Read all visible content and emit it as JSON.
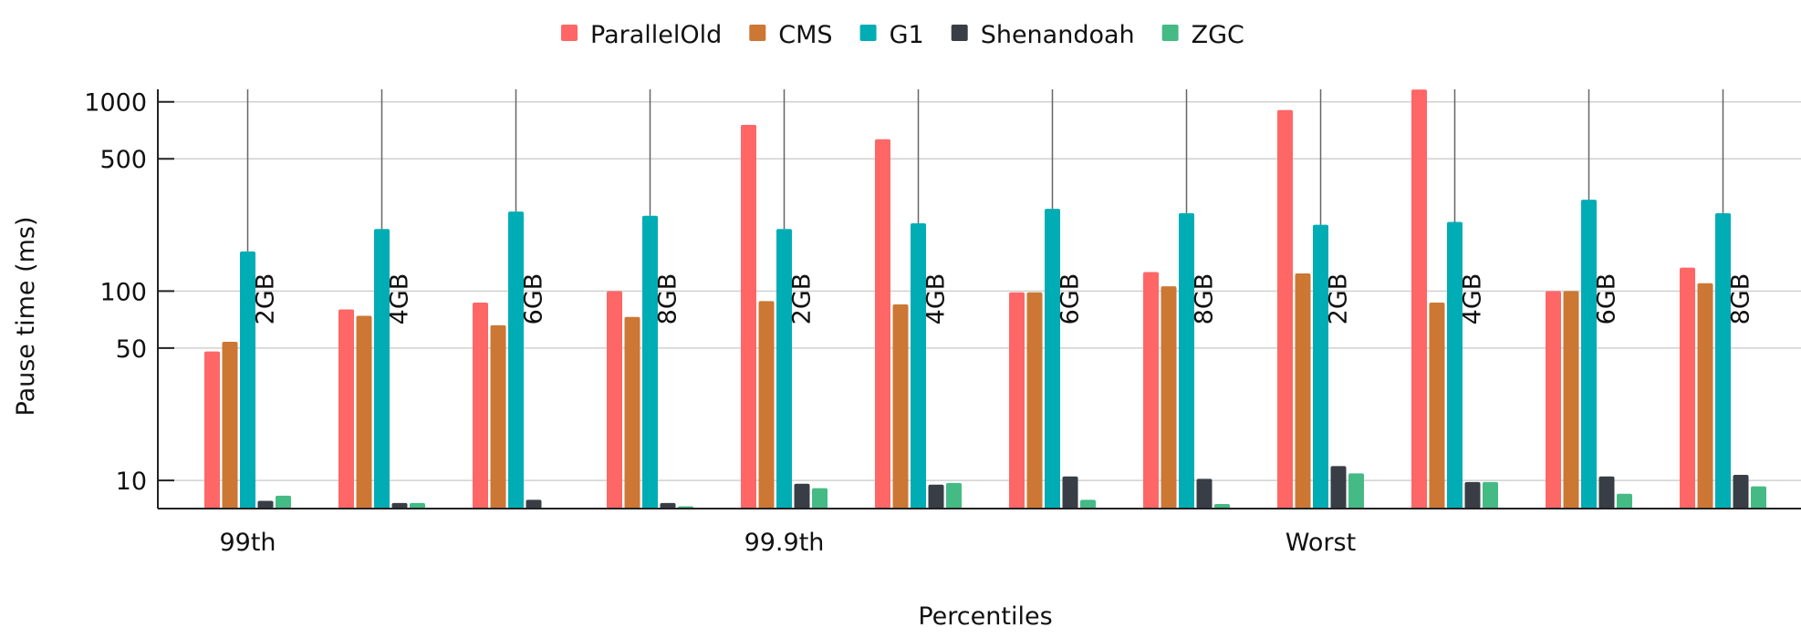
{
  "chart_data": {
    "type": "bar",
    "title": "",
    "xlabel": "Percentiles",
    "ylabel": "Pause time (ms)",
    "yscale": "log",
    "ylim": [
      7.28,
      1175
    ],
    "yticks": [
      10,
      50,
      100,
      500,
      1000
    ],
    "ytick_labels": [
      "10",
      "50",
      "100",
      "500",
      "1000"
    ],
    "grid": "horizontal",
    "legend_position": "top-center",
    "percentile_groups": [
      {
        "label": "99th",
        "group_index": 0
      },
      {
        "label": "99.9th",
        "group_index": 4
      },
      {
        "label": "Worst",
        "group_index": 8
      }
    ],
    "categories": [
      "99th 2GB",
      "99th 4GB",
      "99th 6GB",
      "99th 8GB",
      "99.9th 2GB",
      "99.9th 4GB",
      "99.9th 6GB",
      "99.9th 8GB",
      "Worst 2GB",
      "Worst 4GB",
      "Worst 6GB",
      "Worst 8GB"
    ],
    "bar_labels": [
      "2GB",
      "4GB",
      "6GB",
      "8GB",
      "2GB",
      "4GB",
      "6GB",
      "8GB",
      "2GB",
      "4GB",
      "6GB",
      "8GB"
    ],
    "series": [
      {
        "name": "ParallelOld",
        "color": "#ff6666",
        "values": [
          48,
          80,
          87,
          100,
          755,
          634,
          98.5,
          126,
          904,
          1160,
          100,
          133
        ]
      },
      {
        "name": "CMS",
        "color": "#cc7733",
        "values": [
          54,
          74,
          66,
          73,
          88.5,
          85,
          98.5,
          106,
          124,
          87,
          100,
          110
        ]
      },
      {
        "name": "G1",
        "color": "#00adb5",
        "values": [
          162,
          213,
          263,
          250,
          213,
          228,
          272,
          258,
          224,
          232,
          304,
          258
        ]
      },
      {
        "name": "Shenandoah",
        "color": "#393e46",
        "values": [
          7.8,
          7.6,
          7.9,
          7.6,
          9.6,
          9.5,
          10.5,
          10.2,
          11.9,
          9.8,
          10.5,
          10.7
        ]
      },
      {
        "name": "ZGC",
        "color": "#44bb84",
        "values": [
          8.3,
          7.6,
          7.0,
          7.3,
          9.1,
          9.7,
          7.9,
          7.5,
          10.9,
          9.8,
          8.5,
          9.3
        ]
      }
    ]
  }
}
